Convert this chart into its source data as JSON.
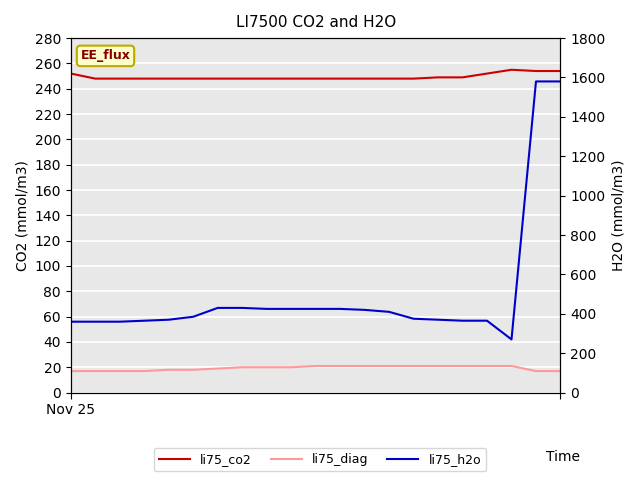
{
  "title": "LI7500 CO2 and H2O",
  "xlabel": "Time",
  "ylabel_left": "CO2 (mmol/m3)",
  "ylabel_right": "H2O (mmol/m3)",
  "ylim_left": [
    0,
    280
  ],
  "ylim_right": [
    0,
    1800
  ],
  "x_label_start": "Nov 25",
  "annotation_label": "EE_flux",
  "annotation_bg": "#FFFFCC",
  "annotation_border": "#BBAA00",
  "annotation_text_color": "#880000",
  "plot_bg_color": "#E8E8E8",
  "grid_color": "#FFFFFF",
  "li75_co2_color": "#CC0000",
  "li75_diag_color": "#FF9999",
  "li75_h2o_color": "#0000CC",
  "li75_co2_x": [
    0,
    1,
    2,
    3,
    4,
    5,
    6,
    7,
    8,
    9,
    10,
    11,
    12,
    13,
    14,
    15,
    16,
    17,
    18,
    19,
    20
  ],
  "li75_co2_y": [
    252,
    248,
    248,
    248,
    248,
    248,
    248,
    248,
    248,
    248,
    248,
    248,
    248,
    248,
    248,
    249,
    249,
    252,
    255,
    254,
    254
  ],
  "li75_diag_x": [
    0,
    1,
    2,
    3,
    4,
    5,
    6,
    7,
    8,
    9,
    10,
    11,
    12,
    13,
    14,
    15,
    16,
    17,
    18,
    19,
    20
  ],
  "li75_diag_y": [
    17,
    17,
    17,
    17,
    18,
    18,
    19,
    20,
    20,
    20,
    21,
    21,
    21,
    21,
    21,
    21,
    21,
    21,
    21,
    17,
    17
  ],
  "li75_h2o_x": [
    0,
    1,
    2,
    3,
    4,
    5,
    6,
    7,
    8,
    9,
    10,
    11,
    12,
    13,
    14,
    15,
    16,
    17,
    18,
    19,
    20
  ],
  "li75_h2o_y": [
    360,
    360,
    360,
    365,
    370,
    385,
    430,
    430,
    425,
    425,
    425,
    425,
    420,
    410,
    375,
    370,
    365,
    365,
    270,
    1580,
    1580
  ],
  "legend_entries": [
    "li75_co2",
    "li75_diag",
    "li75_h2o"
  ],
  "legend_co2_color": "#CC0000",
  "legend_diag_color": "#FF9999",
  "legend_h2o_color": "#0000CC",
  "figsize": [
    6.4,
    4.8
  ],
  "dpi": 100
}
